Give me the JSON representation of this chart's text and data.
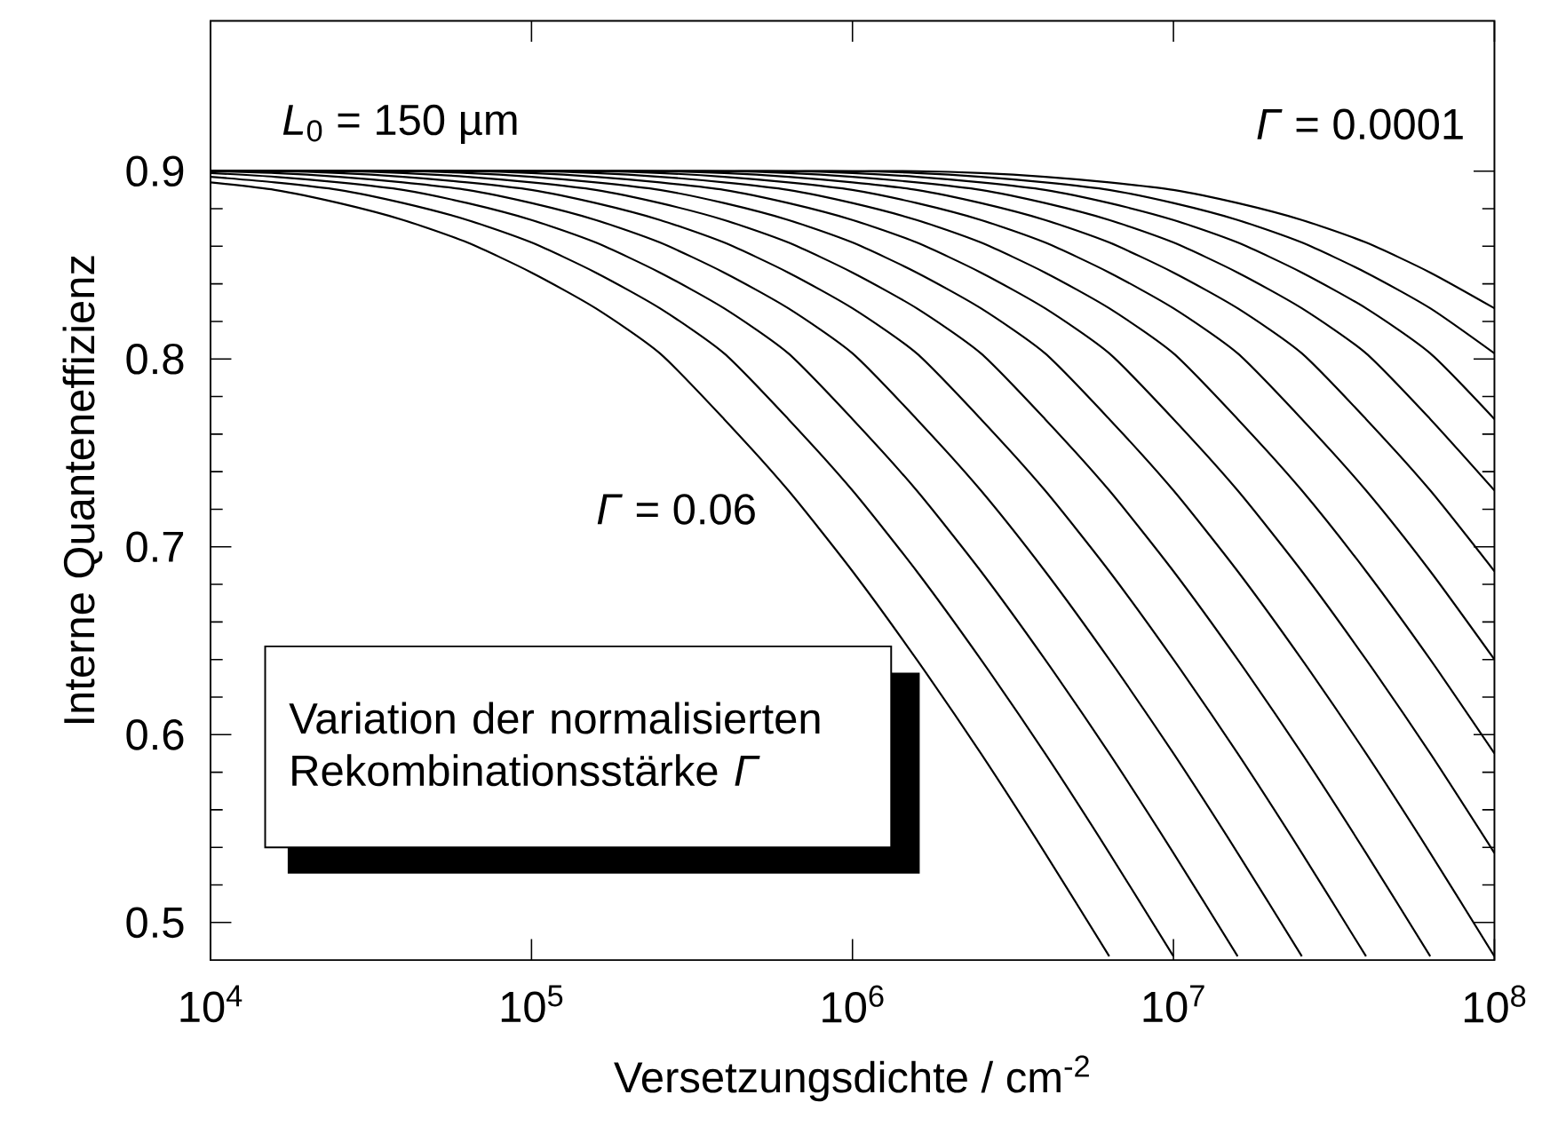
{
  "chart_data": {
    "type": "line",
    "xlabel": "Versetzungsdichte / cm$^{-2}$",
    "ylabel": "Interne Quanteneffizienz",
    "log": "x",
    "grid": false,
    "xlim": [
      10000,
      100000000
    ],
    "ylim": [
      0.48,
      0.98
    ],
    "xticks": [
      {
        "value": 10000,
        "label": "10$^{4}$"
      },
      {
        "value": 100000,
        "label": "10$^{5}$"
      },
      {
        "value": 1000000,
        "label": "10$^{6}$"
      },
      {
        "value": 10000000,
        "label": "10$^{7}$"
      },
      {
        "value": 100000000,
        "label": "10$^{8}$"
      }
    ],
    "yticks": [
      0.5,
      0.6,
      0.7,
      0.8,
      0.9
    ],
    "x": [
      10000,
      15849,
      25119,
      39811,
      63096,
      100000,
      158489,
      251189,
      398107,
      630957,
      1000000,
      1584893,
      2511886,
      3981072,
      6309573,
      10000000,
      15848932,
      25118864,
      39810717,
      63095734,
      100000000
    ],
    "annotations": [
      "*L*$_{0}$ = 150 µm",
      "*Γ* = 0.0001",
      "*Γ* = 0.06",
      "Variation der normalisierten Rekombinationsstärke *Γ*"
    ],
    "series": [
      {
        "color": "#000000",
        "values": [
          0.894,
          0.89,
          0.883,
          0.874,
          0.862,
          0.846,
          0.827,
          0.803,
          0.768,
          0.73,
          0.687,
          0.64,
          0.59,
          0.537,
          0.482,
          null,
          null,
          null,
          null,
          null,
          null
        ]
      },
      {
        "color": "#000000",
        "values": [
          0.897,
          0.894,
          0.89,
          0.883,
          0.874,
          0.862,
          0.846,
          0.827,
          0.803,
          0.768,
          0.73,
          0.687,
          0.64,
          0.59,
          0.537,
          0.482,
          null,
          null,
          null,
          null,
          null
        ]
      },
      {
        "color": "#000000",
        "values": [
          0.899,
          0.897,
          0.894,
          0.89,
          0.883,
          0.874,
          0.862,
          0.846,
          0.827,
          0.803,
          0.768,
          0.73,
          0.687,
          0.64,
          0.59,
          0.537,
          0.482,
          null,
          null,
          null,
          null
        ]
      },
      {
        "color": "#000000",
        "values": [
          0.9,
          0.899,
          0.897,
          0.894,
          0.89,
          0.883,
          0.874,
          0.862,
          0.846,
          0.827,
          0.803,
          0.768,
          0.73,
          0.687,
          0.64,
          0.59,
          0.537,
          0.482,
          null,
          null,
          null
        ]
      },
      {
        "color": "#000000",
        "values": [
          0.9,
          0.9,
          0.899,
          0.897,
          0.894,
          0.89,
          0.883,
          0.874,
          0.862,
          0.846,
          0.827,
          0.803,
          0.768,
          0.73,
          0.687,
          0.64,
          0.59,
          0.537,
          0.482,
          null,
          null
        ]
      },
      {
        "color": "#000000",
        "values": [
          0.9,
          0.9,
          0.9,
          0.899,
          0.897,
          0.894,
          0.89,
          0.883,
          0.874,
          0.862,
          0.846,
          0.827,
          0.803,
          0.768,
          0.73,
          0.687,
          0.64,
          0.59,
          0.537,
          0.482,
          null
        ]
      },
      {
        "color": "#000000",
        "values": [
          0.9,
          0.9,
          0.9,
          0.9,
          0.899,
          0.897,
          0.894,
          0.89,
          0.883,
          0.874,
          0.862,
          0.846,
          0.827,
          0.803,
          0.768,
          0.73,
          0.687,
          0.64,
          0.59,
          0.537,
          0.482
        ]
      },
      {
        "color": "#000000",
        "values": [
          0.9,
          0.9,
          0.9,
          0.9,
          0.9,
          0.899,
          0.897,
          0.894,
          0.89,
          0.883,
          0.874,
          0.862,
          0.846,
          0.827,
          0.803,
          0.768,
          0.73,
          0.687,
          0.64,
          0.59,
          0.537
        ]
      },
      {
        "color": "#000000",
        "values": [
          0.9,
          0.9,
          0.9,
          0.9,
          0.9,
          0.9,
          0.899,
          0.897,
          0.894,
          0.89,
          0.883,
          0.874,
          0.862,
          0.846,
          0.827,
          0.803,
          0.768,
          0.73,
          0.687,
          0.64,
          0.59
        ]
      },
      {
        "color": "#000000",
        "values": [
          0.9,
          0.9,
          0.9,
          0.9,
          0.9,
          0.9,
          0.9,
          0.899,
          0.897,
          0.894,
          0.89,
          0.883,
          0.874,
          0.862,
          0.846,
          0.827,
          0.803,
          0.768,
          0.73,
          0.687,
          0.64
        ]
      },
      {
        "color": "#000000",
        "values": [
          0.9,
          0.9,
          0.9,
          0.9,
          0.9,
          0.9,
          0.9,
          0.9,
          0.899,
          0.897,
          0.894,
          0.89,
          0.883,
          0.874,
          0.862,
          0.846,
          0.827,
          0.803,
          0.768,
          0.73,
          0.687
        ]
      },
      {
        "color": "#000000",
        "values": [
          0.9,
          0.9,
          0.9,
          0.9,
          0.9,
          0.9,
          0.9,
          0.9,
          0.9,
          0.899,
          0.897,
          0.894,
          0.89,
          0.883,
          0.874,
          0.862,
          0.846,
          0.827,
          0.803,
          0.768,
          0.73
        ]
      },
      {
        "color": "#000000",
        "values": [
          0.9,
          0.9,
          0.9,
          0.9,
          0.9,
          0.9,
          0.9,
          0.9,
          0.9,
          0.9,
          0.899,
          0.897,
          0.894,
          0.89,
          0.883,
          0.874,
          0.862,
          0.846,
          0.827,
          0.803,
          0.768
        ]
      },
      {
        "color": "#000000",
        "values": [
          0.9,
          0.9,
          0.9,
          0.9,
          0.9,
          0.9,
          0.9,
          0.9,
          0.9,
          0.9,
          0.9,
          0.899,
          0.897,
          0.894,
          0.89,
          0.883,
          0.874,
          0.862,
          0.846,
          0.827,
          0.803
        ]
      },
      {
        "color": "#000000",
        "values": [
          0.9,
          0.9,
          0.9,
          0.9,
          0.9,
          0.9,
          0.9,
          0.9,
          0.9,
          0.9,
          0.9,
          0.9,
          0.899,
          0.897,
          0.894,
          0.89,
          0.883,
          0.874,
          0.862,
          0.846,
          0.827
        ]
      }
    ]
  }
}
